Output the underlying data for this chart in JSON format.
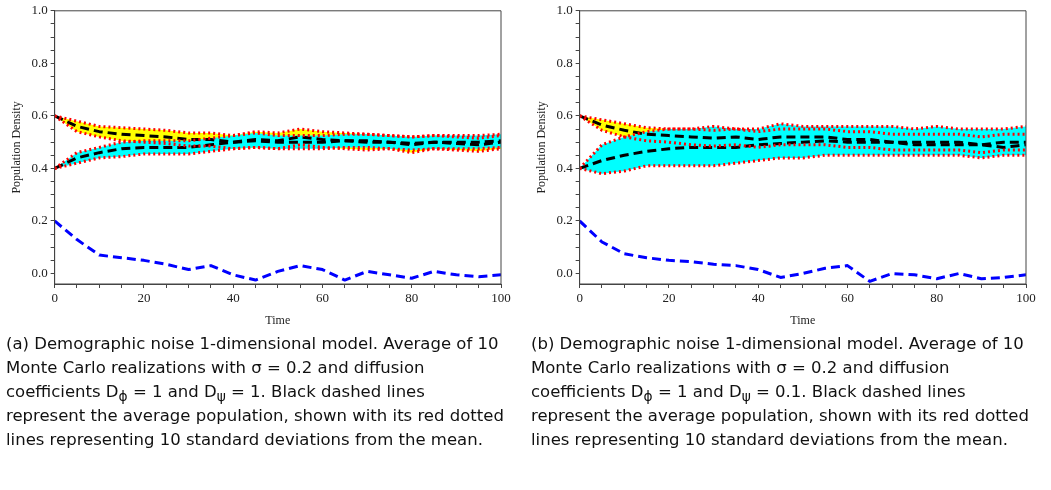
{
  "chart_data": [
    {
      "type": "line",
      "xlabel": "Time",
      "ylabel": "Population Density",
      "xlim": [
        0,
        100
      ],
      "ylim": [
        -0.04,
        1.0
      ],
      "xticks": [
        0,
        {
          "value": 5,
          "label": null
        },
        {
          "value": 10,
          "label": null
        },
        {
          "value": 15,
          "label": null
        },
        20,
        {
          "value": 25,
          "label": null
        },
        {
          "value": 30,
          "label": null
        },
        {
          "value": 35,
          "label": null
        },
        40,
        {
          "value": 45,
          "label": null
        },
        {
          "value": 50,
          "label": null
        },
        {
          "value": 55,
          "label": null
        },
        60,
        {
          "value": 65,
          "label": null
        },
        {
          "value": 70,
          "label": null
        },
        {
          "value": 75,
          "label": null
        },
        80,
        {
          "value": 85,
          "label": null
        },
        {
          "value": 90,
          "label": null
        },
        {
          "value": 95,
          "label": null
        },
        100
      ],
      "yticks": [
        {
          "value": 0,
          "label": "0.0"
        },
        {
          "value": 0.05,
          "label": null
        },
        {
          "value": 0.1,
          "label": null
        },
        {
          "value": 0.15,
          "label": null
        },
        0.2,
        {
          "value": 0.25,
          "label": null
        },
        {
          "value": 0.3,
          "label": null
        },
        {
          "value": 0.35,
          "label": null
        },
        0.4,
        {
          "value": 0.45,
          "label": null
        },
        {
          "value": 0.5,
          "label": null
        },
        {
          "value": 0.55,
          "label": null
        },
        0.6,
        {
          "value": 0.65,
          "label": null
        },
        {
          "value": 0.7,
          "label": null
        },
        {
          "value": 0.75,
          "label": null
        },
        0.8,
        {
          "value": 0.85,
          "label": null
        },
        {
          "value": 0.9,
          "label": null
        },
        {
          "value": 0.95,
          "label": null
        },
        {
          "value": 1.0,
          "label": "1.0"
        }
      ],
      "x": [
        0,
        5,
        10,
        15,
        20,
        25,
        30,
        35,
        40,
        45,
        50,
        55,
        60,
        65,
        70,
        75,
        80,
        85,
        90,
        95,
        100
      ],
      "grid": false,
      "legend": false,
      "line_style": "dashed",
      "marker": "none",
      "series": [
        {
          "color": "#000000",
          "values": [
            0.6,
            0.56,
            0.54,
            0.53,
            0.525,
            0.52,
            0.51,
            0.51,
            0.5,
            0.51,
            0.505,
            0.52,
            0.51,
            0.505,
            0.5,
            0.5,
            0.49,
            0.5,
            0.495,
            0.49,
            0.5
          ],
          "lower": [
            0.6,
            0.54,
            0.52,
            0.505,
            0.5,
            0.495,
            0.485,
            0.485,
            0.475,
            0.48,
            0.475,
            0.49,
            0.48,
            0.475,
            0.47,
            0.475,
            0.46,
            0.475,
            0.47,
            0.465,
            0.475
          ],
          "upper": [
            0.6,
            0.58,
            0.56,
            0.555,
            0.55,
            0.545,
            0.535,
            0.535,
            0.525,
            0.54,
            0.535,
            0.55,
            0.54,
            0.535,
            0.53,
            0.525,
            0.52,
            0.525,
            0.52,
            0.515,
            0.525
          ]
        },
        {
          "color": "#000000",
          "values": [
            0.4,
            0.44,
            0.46,
            0.475,
            0.48,
            0.48,
            0.48,
            0.49,
            0.5,
            0.505,
            0.5,
            0.5,
            0.5,
            0.505,
            0.505,
            0.5,
            0.495,
            0.5,
            0.5,
            0.5,
            0.505
          ],
          "lower": [
            0.4,
            0.42,
            0.44,
            0.445,
            0.455,
            0.455,
            0.455,
            0.465,
            0.475,
            0.48,
            0.475,
            0.475,
            0.475,
            0.48,
            0.48,
            0.475,
            0.47,
            0.475,
            0.475,
            0.475,
            0.48
          ],
          "upper": [
            0.4,
            0.46,
            0.48,
            0.5,
            0.505,
            0.505,
            0.505,
            0.515,
            0.525,
            0.535,
            0.525,
            0.525,
            0.525,
            0.53,
            0.53,
            0.525,
            0.52,
            0.525,
            0.525,
            0.525,
            0.53
          ]
        },
        {
          "color": "#ff0000",
          "line_style": "dotted",
          "values": [
            0.6,
            0.54,
            0.52,
            0.505,
            0.5,
            0.495,
            0.485,
            0.485,
            0.475,
            0.48,
            0.475,
            0.49,
            0.48,
            0.475,
            0.47,
            0.475,
            0.46,
            0.475,
            0.47,
            0.465,
            0.475
          ]
        },
        {
          "color": "#ff0000",
          "line_style": "dotted",
          "values": [
            0.6,
            0.58,
            0.56,
            0.555,
            0.55,
            0.545,
            0.535,
            0.535,
            0.525,
            0.54,
            0.535,
            0.55,
            0.54,
            0.535,
            0.53,
            0.525,
            0.52,
            0.525,
            0.52,
            0.515,
            0.525
          ]
        },
        {
          "color": "#ff0000",
          "line_style": "dotted",
          "values": [
            0.4,
            0.42,
            0.44,
            0.445,
            0.455,
            0.455,
            0.455,
            0.465,
            0.475,
            0.48,
            0.475,
            0.475,
            0.475,
            0.48,
            0.48,
            0.475,
            0.47,
            0.475,
            0.475,
            0.475,
            0.48
          ]
        },
        {
          "color": "#ff0000",
          "line_style": "dotted",
          "values": [
            0.4,
            0.46,
            0.48,
            0.5,
            0.505,
            0.505,
            0.505,
            0.515,
            0.525,
            0.535,
            0.525,
            0.525,
            0.525,
            0.53,
            0.53,
            0.525,
            0.52,
            0.525,
            0.525,
            0.525,
            0.53
          ]
        },
        {
          "color": "#0000ff",
          "values": [
            0.2,
            0.129,
            0.07,
            0.06,
            0.05,
            0.035,
            0.015,
            0.03,
            -0.005,
            -0.025,
            0.008,
            0.03,
            0.015,
            -0.025,
            0.008,
            -0.005,
            -0.018,
            0.008,
            -0.005,
            -0.012,
            -0.005
          ]
        }
      ],
      "annotations": [
        "(a) Demographic noise 1-dimensional model. Average of 10 Monte Carlo realizations with σ = 0.2 and diffusion coefficients D$_{ϕ}$ = 1 and D$_{ψ}$ = 1. Black dashed lines represent the average population, shown with its red dotted lines representing 10 standard deviations from the mean."
      ]
    },
    {
      "type": "line",
      "xlabel": "Time",
      "ylabel": "Population Density",
      "xlim": [
        0,
        100
      ],
      "ylim": [
        -0.04,
        1.0
      ],
      "xticks": [
        0,
        {
          "value": 5,
          "label": null
        },
        {
          "value": 10,
          "label": null
        },
        {
          "value": 15,
          "label": null
        },
        20,
        {
          "value": 25,
          "label": null
        },
        {
          "value": 30,
          "label": null
        },
        {
          "value": 35,
          "label": null
        },
        40,
        {
          "value": 45,
          "label": null
        },
        {
          "value": 50,
          "label": null
        },
        {
          "value": 55,
          "label": null
        },
        60,
        {
          "value": 65,
          "label": null
        },
        {
          "value": 70,
          "label": null
        },
        {
          "value": 75,
          "label": null
        },
        80,
        {
          "value": 85,
          "label": null
        },
        {
          "value": 90,
          "label": null
        },
        {
          "value": 95,
          "label": null
        },
        100
      ],
      "yticks": [
        {
          "value": 0,
          "label": "0.0"
        },
        {
          "value": 0.05,
          "label": null
        },
        {
          "value": 0.1,
          "label": null
        },
        {
          "value": 0.15,
          "label": null
        },
        0.2,
        {
          "value": 0.25,
          "label": null
        },
        {
          "value": 0.3,
          "label": null
        },
        {
          "value": 0.35,
          "label": null
        },
        0.4,
        {
          "value": 0.45,
          "label": null
        },
        {
          "value": 0.5,
          "label": null
        },
        {
          "value": 0.55,
          "label": null
        },
        0.6,
        {
          "value": 0.65,
          "label": null
        },
        {
          "value": 0.7,
          "label": null
        },
        {
          "value": 0.75,
          "label": null
        },
        0.8,
        {
          "value": 0.85,
          "label": null
        },
        {
          "value": 0.9,
          "label": null
        },
        {
          "value": 0.95,
          "label": null
        },
        {
          "value": 1.0,
          "label": "1.0"
        }
      ],
      "x": [
        0,
        5,
        10,
        15,
        20,
        25,
        30,
        35,
        40,
        45,
        50,
        55,
        60,
        65,
        70,
        75,
        80,
        85,
        90,
        95,
        100
      ],
      "grid": false,
      "legend": false,
      "line_style": "dashed",
      "marker": "none",
      "series": [
        {
          "color": "#000000",
          "values": [
            0.6,
            0.565,
            0.545,
            0.53,
            0.525,
            0.52,
            0.515,
            0.52,
            0.51,
            0.52,
            0.52,
            0.52,
            0.51,
            0.51,
            0.5,
            0.5,
            0.5,
            0.5,
            0.49,
            0.5,
            0.5
          ],
          "lower": [
            0.6,
            0.545,
            0.52,
            0.505,
            0.5,
            0.49,
            0.485,
            0.49,
            0.48,
            0.49,
            0.49,
            0.49,
            0.48,
            0.48,
            0.47,
            0.47,
            0.47,
            0.47,
            0.46,
            0.47,
            0.47
          ],
          "upper": [
            0.6,
            0.585,
            0.57,
            0.555,
            0.55,
            0.55,
            0.545,
            0.55,
            0.54,
            0.55,
            0.55,
            0.55,
            0.54,
            0.54,
            0.53,
            0.53,
            0.53,
            0.53,
            0.52,
            0.53,
            0.53
          ]
        },
        {
          "color": "#000000",
          "values": [
            0.4,
            0.43,
            0.45,
            0.465,
            0.475,
            0.48,
            0.48,
            0.48,
            0.49,
            0.495,
            0.5,
            0.505,
            0.5,
            0.5,
            0.5,
            0.49,
            0.49,
            0.49,
            0.49,
            0.48,
            0.49
          ],
          "lower": [
            0.4,
            0.38,
            0.39,
            0.41,
            0.41,
            0.41,
            0.41,
            0.42,
            0.43,
            0.44,
            0.44,
            0.45,
            0.45,
            0.45,
            0.45,
            0.45,
            0.45,
            0.45,
            0.44,
            0.45,
            0.45
          ],
          "upper": [
            0.4,
            0.49,
            0.52,
            0.54,
            0.55,
            0.55,
            0.56,
            0.55,
            0.55,
            0.57,
            0.56,
            0.56,
            0.56,
            0.56,
            0.56,
            0.55,
            0.56,
            0.55,
            0.55,
            0.55,
            0.56
          ]
        },
        {
          "color": "#ff0000",
          "line_style": "dotted",
          "values": [
            0.6,
            0.545,
            0.52,
            0.505,
            0.5,
            0.49,
            0.485,
            0.49,
            0.48,
            0.49,
            0.49,
            0.49,
            0.48,
            0.48,
            0.47,
            0.47,
            0.47,
            0.47,
            0.46,
            0.47,
            0.47
          ]
        },
        {
          "color": "#ff0000",
          "line_style": "dotted",
          "values": [
            0.6,
            0.585,
            0.57,
            0.555,
            0.55,
            0.55,
            0.545,
            0.55,
            0.54,
            0.55,
            0.55,
            0.55,
            0.54,
            0.54,
            0.53,
            0.53,
            0.53,
            0.53,
            0.52,
            0.53,
            0.53
          ]
        },
        {
          "color": "#ff0000",
          "line_style": "dotted",
          "values": [
            0.4,
            0.38,
            0.39,
            0.41,
            0.41,
            0.41,
            0.41,
            0.42,
            0.43,
            0.44,
            0.44,
            0.45,
            0.45,
            0.45,
            0.45,
            0.45,
            0.45,
            0.45,
            0.44,
            0.45,
            0.45
          ]
        },
        {
          "color": "#ff0000",
          "line_style": "dotted",
          "values": [
            0.4,
            0.49,
            0.52,
            0.54,
            0.55,
            0.55,
            0.56,
            0.55,
            0.55,
            0.57,
            0.56,
            0.56,
            0.56,
            0.56,
            0.56,
            0.55,
            0.56,
            0.55,
            0.55,
            0.55,
            0.56
          ]
        },
        {
          "color": "#0000ff",
          "values": [
            0.2,
            0.12,
            0.075,
            0.06,
            0.05,
            0.045,
            0.035,
            0.03,
            0.015,
            -0.015,
            0.0,
            0.02,
            0.03,
            -0.03,
            0.0,
            -0.005,
            -0.02,
            0.0,
            -0.02,
            -0.015,
            -0.005
          ]
        }
      ],
      "annotations": [
        "(b) Demographic noise 1-dimensional model. Average of 10 Monte Carlo realizations with σ = 0.2 and diffusion coefficients D$_{ϕ}$ = 1 and D$_{ψ}$ = 0.1. Black dashed lines represent the average population, shown with its red dotted lines representing 10 standard deviations from the mean."
      ]
    }
  ]
}
